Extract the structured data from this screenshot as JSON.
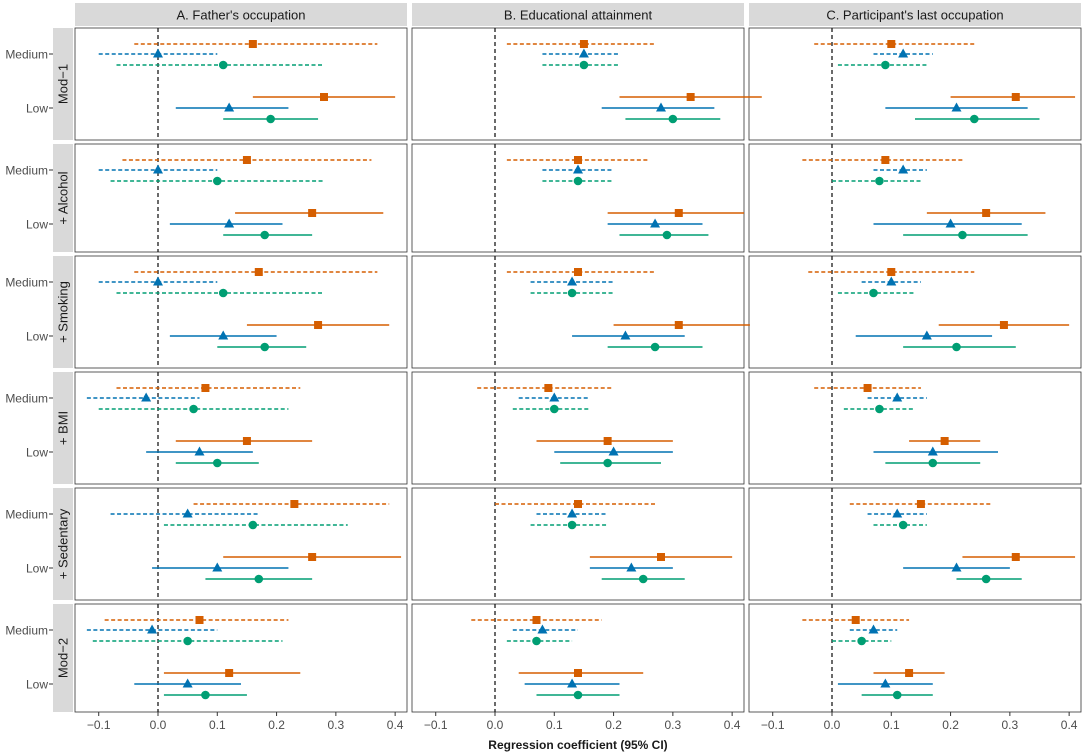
{
  "chart_data": {
    "type": "forest",
    "xlabel": "Regression coefficient (95% CI)",
    "xlim": [
      -0.14,
      0.42
    ],
    "xticks": [
      -0.1,
      0.0,
      0.1,
      0.2,
      0.3,
      0.4
    ],
    "xtick_labels": [
      "−0.1",
      "0.0",
      "0.1",
      "0.2",
      "0.3",
      "0.4"
    ],
    "reference_line": 0,
    "panels": [
      {
        "key": "A",
        "title": "A. Father's occupation"
      },
      {
        "key": "B",
        "title": "B. Educational attainment"
      },
      {
        "key": "C",
        "title": "C. Participant's last occupation"
      }
    ],
    "models": [
      "Mod−1",
      "+ Alcohol",
      "+ Smoking",
      "+ BMI",
      "+ Sedentary",
      "Mod−2"
    ],
    "levels": [
      "Medium",
      "Low"
    ],
    "series": [
      {
        "name": "series-orange-square",
        "color": "#D55E00",
        "shape": "square"
      },
      {
        "name": "series-blue-triangle",
        "color": "#0072B2",
        "shape": "triangle"
      },
      {
        "name": "series-green-circle",
        "color": "#009E73",
        "shape": "circle"
      }
    ],
    "estimates": {
      "A": [
        [
          [
            [
              0.16,
              -0.04,
              0.37
            ],
            [
              0.0,
              -0.1,
              0.1
            ],
            [
              0.11,
              -0.07,
              0.28
            ]
          ],
          [
            [
              0.28,
              0.16,
              0.4
            ],
            [
              0.12,
              0.03,
              0.22
            ],
            [
              0.19,
              0.11,
              0.27
            ]
          ]
        ],
        [
          [
            [
              0.15,
              -0.06,
              0.36
            ],
            [
              0.0,
              -0.1,
              0.1
            ],
            [
              0.1,
              -0.08,
              0.28
            ]
          ],
          [
            [
              0.26,
              0.13,
              0.38
            ],
            [
              0.12,
              0.02,
              0.21
            ],
            [
              0.18,
              0.11,
              0.26
            ]
          ]
        ],
        [
          [
            [
              0.17,
              -0.04,
              0.37
            ],
            [
              0.0,
              -0.1,
              0.1
            ],
            [
              0.11,
              -0.07,
              0.28
            ]
          ],
          [
            [
              0.27,
              0.15,
              0.39
            ],
            [
              0.11,
              0.02,
              0.2
            ],
            [
              0.18,
              0.1,
              0.25
            ]
          ]
        ],
        [
          [
            [
              0.08,
              -0.07,
              0.24
            ],
            [
              -0.02,
              -0.12,
              0.07
            ],
            [
              0.06,
              -0.1,
              0.22
            ]
          ],
          [
            [
              0.15,
              0.03,
              0.26
            ],
            [
              0.07,
              -0.02,
              0.16
            ],
            [
              0.1,
              0.03,
              0.17
            ]
          ]
        ],
        [
          [
            [
              0.23,
              0.06,
              0.39
            ],
            [
              0.05,
              -0.08,
              0.17
            ],
            [
              0.16,
              0.01,
              0.32
            ]
          ],
          [
            [
              0.26,
              0.11,
              0.41
            ],
            [
              0.1,
              -0.01,
              0.22
            ],
            [
              0.17,
              0.08,
              0.26
            ]
          ]
        ],
        [
          [
            [
              0.07,
              -0.09,
              0.22
            ],
            [
              -0.01,
              -0.12,
              0.1
            ],
            [
              0.05,
              -0.11,
              0.21
            ]
          ],
          [
            [
              0.12,
              0.01,
              0.24
            ],
            [
              0.05,
              -0.04,
              0.14
            ],
            [
              0.08,
              0.01,
              0.15
            ]
          ]
        ]
      ],
      "B": [
        [
          [
            [
              0.15,
              0.02,
              0.27
            ],
            [
              0.15,
              0.08,
              0.21
            ],
            [
              0.15,
              0.08,
              0.21
            ]
          ],
          [
            [
              0.33,
              0.21,
              0.45
            ],
            [
              0.28,
              0.18,
              0.37
            ],
            [
              0.3,
              0.22,
              0.38
            ]
          ]
        ],
        [
          [
            [
              0.14,
              0.02,
              0.26
            ],
            [
              0.14,
              0.08,
              0.2
            ],
            [
              0.14,
              0.08,
              0.2
            ]
          ],
          [
            [
              0.31,
              0.19,
              0.42
            ],
            [
              0.27,
              0.19,
              0.35
            ],
            [
              0.29,
              0.21,
              0.36
            ]
          ]
        ],
        [
          [
            [
              0.14,
              0.02,
              0.27
            ],
            [
              0.13,
              0.06,
              0.2
            ],
            [
              0.13,
              0.06,
              0.2
            ]
          ],
          [
            [
              0.31,
              0.2,
              0.43
            ],
            [
              0.22,
              0.13,
              0.32
            ],
            [
              0.27,
              0.19,
              0.35
            ]
          ]
        ],
        [
          [
            [
              0.09,
              -0.03,
              0.2
            ],
            [
              0.1,
              0.04,
              0.16
            ],
            [
              0.1,
              0.03,
              0.16
            ]
          ],
          [
            [
              0.19,
              0.07,
              0.3
            ],
            [
              0.2,
              0.1,
              0.3
            ],
            [
              0.19,
              0.11,
              0.28
            ]
          ]
        ],
        [
          [
            [
              0.14,
              0.0,
              0.27
            ],
            [
              0.13,
              0.07,
              0.19
            ],
            [
              0.13,
              0.06,
              0.19
            ]
          ],
          [
            [
              0.28,
              0.16,
              0.4
            ],
            [
              0.23,
              0.16,
              0.3
            ],
            [
              0.25,
              0.18,
              0.32
            ]
          ]
        ],
        [
          [
            [
              0.07,
              -0.04,
              0.18
            ],
            [
              0.08,
              0.03,
              0.14
            ],
            [
              0.07,
              0.02,
              0.13
            ]
          ],
          [
            [
              0.14,
              0.04,
              0.25
            ],
            [
              0.13,
              0.05,
              0.21
            ],
            [
              0.14,
              0.07,
              0.21
            ]
          ]
        ]
      ],
      "C": [
        [
          [
            [
              0.1,
              -0.03,
              0.24
            ],
            [
              0.12,
              0.07,
              0.17
            ],
            [
              0.09,
              0.01,
              0.16
            ]
          ],
          [
            [
              0.31,
              0.2,
              0.41
            ],
            [
              0.21,
              0.09,
              0.33
            ],
            [
              0.24,
              0.14,
              0.35
            ]
          ]
        ],
        [
          [
            [
              0.09,
              -0.05,
              0.22
            ],
            [
              0.12,
              0.07,
              0.16
            ],
            [
              0.08,
              0.0,
              0.15
            ]
          ],
          [
            [
              0.26,
              0.16,
              0.36
            ],
            [
              0.2,
              0.07,
              0.32
            ],
            [
              0.22,
              0.12,
              0.33
            ]
          ]
        ],
        [
          [
            [
              0.1,
              -0.04,
              0.24
            ],
            [
              0.1,
              0.05,
              0.15
            ],
            [
              0.07,
              0.01,
              0.14
            ]
          ],
          [
            [
              0.29,
              0.18,
              0.4
            ],
            [
              0.16,
              0.04,
              0.27
            ],
            [
              0.21,
              0.12,
              0.31
            ]
          ]
        ],
        [
          [
            [
              0.06,
              -0.03,
              0.15
            ],
            [
              0.11,
              0.06,
              0.16
            ],
            [
              0.08,
              0.02,
              0.14
            ]
          ],
          [
            [
              0.19,
              0.13,
              0.25
            ],
            [
              0.17,
              0.07,
              0.28
            ],
            [
              0.17,
              0.09,
              0.25
            ]
          ]
        ],
        [
          [
            [
              0.15,
              0.03,
              0.27
            ],
            [
              0.11,
              0.06,
              0.16
            ],
            [
              0.12,
              0.07,
              0.16
            ]
          ],
          [
            [
              0.31,
              0.22,
              0.41
            ],
            [
              0.21,
              0.12,
              0.3
            ],
            [
              0.26,
              0.21,
              0.32
            ]
          ]
        ],
        [
          [
            [
              0.04,
              -0.05,
              0.13
            ],
            [
              0.07,
              0.03,
              0.11
            ],
            [
              0.05,
              0.0,
              0.1
            ]
          ],
          [
            [
              0.13,
              0.07,
              0.19
            ],
            [
              0.09,
              0.01,
              0.17
            ],
            [
              0.11,
              0.05,
              0.17
            ]
          ]
        ]
      ]
    }
  }
}
